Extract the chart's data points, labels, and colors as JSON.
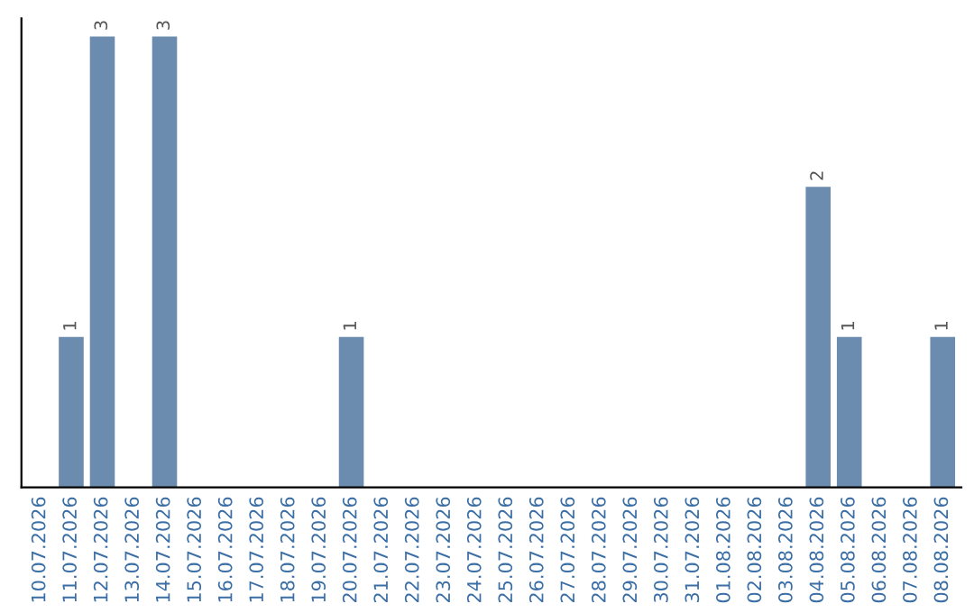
{
  "chart_data": {
    "type": "bar",
    "categories": [
      "10.07.2026",
      "11.07.2026",
      "12.07.2026",
      "13.07.2026",
      "14.07.2026",
      "15.07.2026",
      "16.07.2026",
      "17.07.2026",
      "18.07.2026",
      "19.07.2026",
      "20.07.2026",
      "21.07.2026",
      "22.07.2026",
      "23.07.2026",
      "24.07.2026",
      "25.07.2026",
      "26.07.2026",
      "27.07.2026",
      "28.07.2026",
      "29.07.2026",
      "30.07.2026",
      "31.07.2026",
      "01.08.2026",
      "02.08.2026",
      "03.08.2026",
      "04.08.2026",
      "05.08.2026",
      "06.08.2026",
      "07.08.2026",
      "08.08.2026"
    ],
    "values": [
      0,
      1,
      3,
      0,
      3,
      0,
      0,
      0,
      0,
      0,
      1,
      0,
      0,
      0,
      0,
      0,
      0,
      0,
      0,
      0,
      0,
      0,
      0,
      0,
      0,
      2,
      1,
      0,
      0,
      1
    ],
    "color": "#6b8cae",
    "value_labels": [
      null,
      "1",
      "3",
      null,
      "3",
      null,
      null,
      null,
      null,
      null,
      "1",
      null,
      null,
      null,
      null,
      null,
      null,
      null,
      null,
      null,
      null,
      null,
      null,
      null,
      null,
      "2",
      "1",
      null,
      null,
      "1"
    ],
    "tick_labels": "x",
    "grid": false
  }
}
